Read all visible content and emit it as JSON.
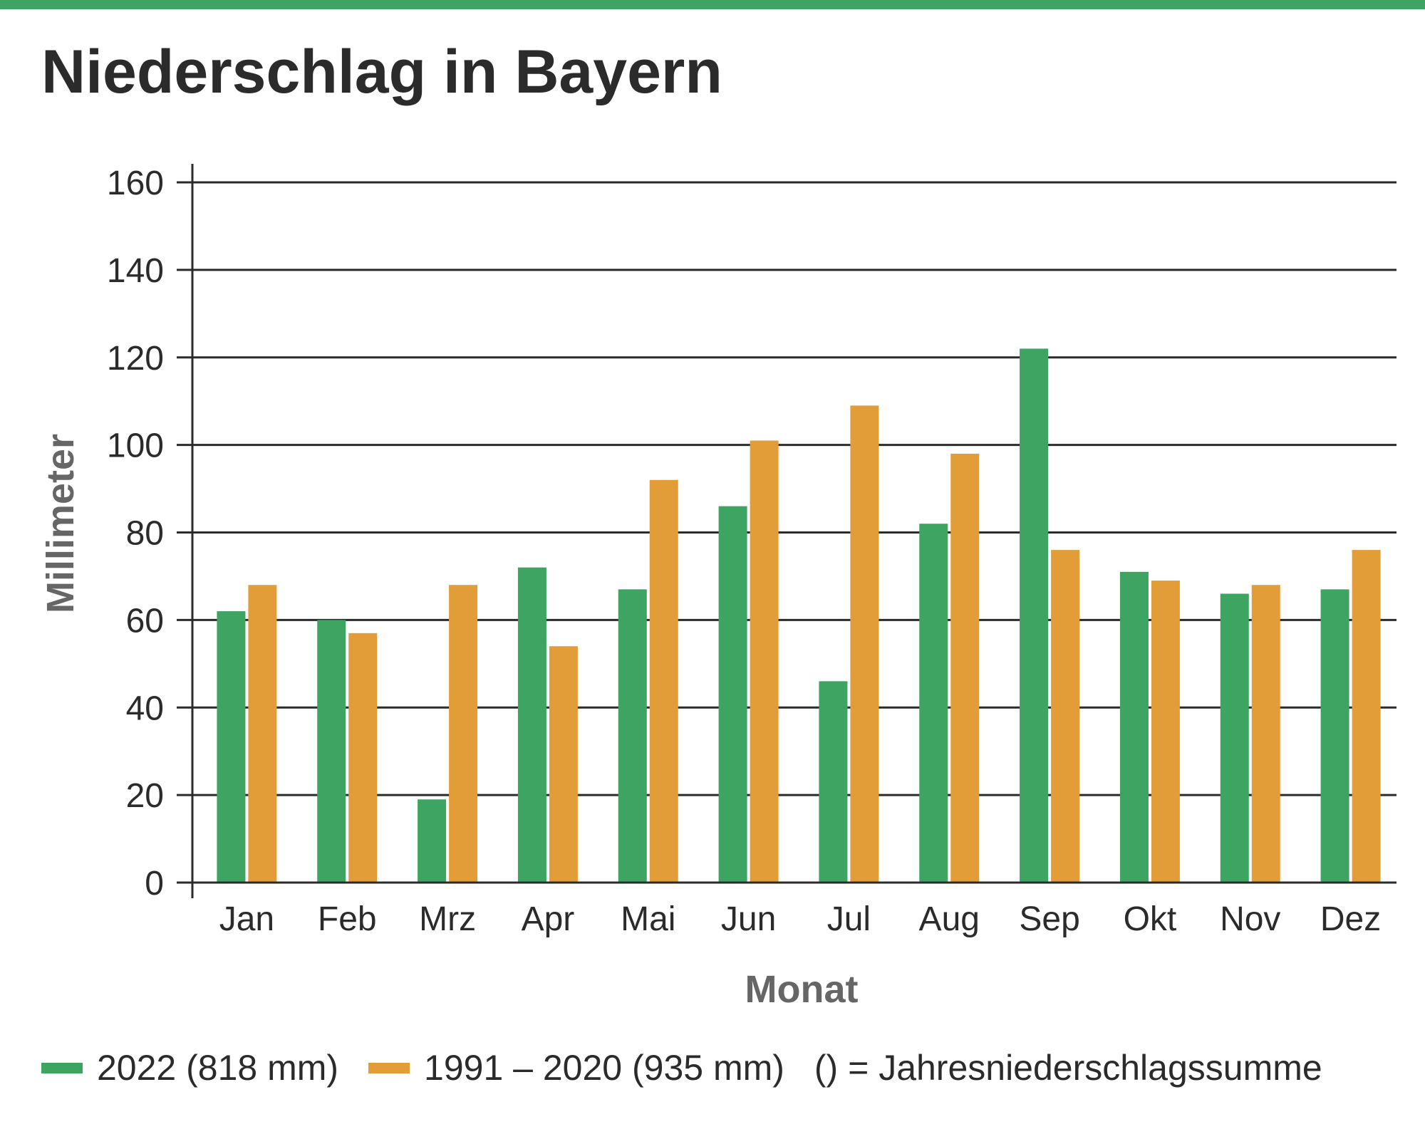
{
  "title": "Niederschlag in Bayern",
  "colors": {
    "top_bar": "#3da462",
    "series_2022": "#3da462",
    "series_reference": "#e39d38",
    "grid": "#2b2b2b"
  },
  "legend": {
    "items": [
      {
        "label": "2022 (818 mm)",
        "color": "#3da462"
      },
      {
        "label": "1991 – 2020 (935 mm)",
        "color": "#e39d38"
      }
    ],
    "note": "() = Jahresniederschlagssumme"
  },
  "chart_data": {
    "type": "bar",
    "title": "Niederschlag in Bayern",
    "xlabel": "Monat",
    "ylabel": "Millimeter",
    "ylim": [
      0,
      160
    ],
    "yticks": [
      0,
      20,
      40,
      60,
      80,
      100,
      120,
      140,
      160
    ],
    "grid": true,
    "legend_position": "bottom",
    "categories": [
      "Jan",
      "Feb",
      "Mrz",
      "Apr",
      "Mai",
      "Jun",
      "Jul",
      "Aug",
      "Sep",
      "Okt",
      "Nov",
      "Dez"
    ],
    "series": [
      {
        "name": "2022 (818 mm)",
        "color": "#3da462",
        "values": [
          62,
          60,
          19,
          72,
          67,
          86,
          46,
          82,
          122,
          71,
          66,
          67
        ]
      },
      {
        "name": "1991 – 2020 (935 mm)",
        "color": "#e39d38",
        "values": [
          68,
          57,
          68,
          54,
          92,
          101,
          109,
          98,
          76,
          69,
          68,
          76
        ]
      }
    ]
  }
}
